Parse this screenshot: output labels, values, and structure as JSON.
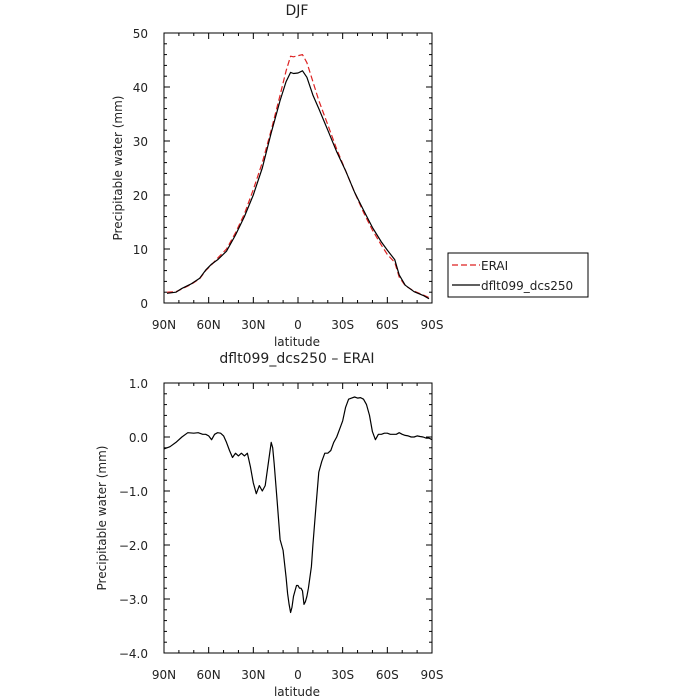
{
  "chart_data": [
    {
      "type": "line",
      "title": "DJF",
      "xlabel": "latitude",
      "ylabel": "Precipitable water  (mm)",
      "xlim": [
        90,
        -90
      ],
      "ylim": [
        0,
        50
      ],
      "x_ticks": [
        90,
        60,
        30,
        0,
        -30,
        -60,
        -90
      ],
      "x_tick_labels": [
        "90N",
        "60N",
        "30N",
        "0",
        "30S",
        "60S",
        "90S"
      ],
      "y_ticks": [
        0,
        10,
        20,
        30,
        40,
        50
      ],
      "y_tick_labels": [
        "0",
        "10",
        "20",
        "30",
        "40",
        "50"
      ],
      "legend_placement": "right, outside plot",
      "series": [
        {
          "name": "ERAI",
          "color": "#dd2222",
          "style": "dashed",
          "x": [
            88,
            82,
            78,
            72,
            66,
            62,
            58,
            54,
            48,
            42,
            36,
            30,
            24,
            18,
            12,
            8,
            5,
            3,
            0,
            -3,
            -6,
            -10,
            -14,
            -20,
            -26,
            -32,
            -38,
            -44,
            -50,
            -56,
            -60,
            -65,
            -68,
            -72,
            -78,
            -84,
            -88
          ],
          "values": [
            2.0,
            2.1,
            2.6,
            3.4,
            4.5,
            6.0,
            7.1,
            8.3,
            10.0,
            13.0,
            16.5,
            21.0,
            26.0,
            32.0,
            38.5,
            43.0,
            45.7,
            45.6,
            45.8,
            46.0,
            44.5,
            41.0,
            37.5,
            33.0,
            28.5,
            24.5,
            20.5,
            16.8,
            13.5,
            10.7,
            9.0,
            7.5,
            4.8,
            3.2,
            2.2,
            1.5,
            1.0
          ]
        },
        {
          "name": "dflt099_dcs250",
          "color": "#000000",
          "style": "solid",
          "x": [
            88,
            82,
            78,
            72,
            66,
            62,
            58,
            54,
            48,
            42,
            36,
            30,
            24,
            18,
            12,
            8,
            5,
            3,
            0,
            -3,
            -6,
            -10,
            -14,
            -20,
            -26,
            -32,
            -38,
            -44,
            -50,
            -56,
            -60,
            -65,
            -68,
            -72,
            -78,
            -84,
            -88
          ],
          "values": [
            1.8,
            2.0,
            2.7,
            3.5,
            4.6,
            6.1,
            7.2,
            8.0,
            9.6,
            12.6,
            16.0,
            20.0,
            25.0,
            31.5,
            37.5,
            41.0,
            42.7,
            42.5,
            42.6,
            43.0,
            41.8,
            38.5,
            36.0,
            32.0,
            28.0,
            24.5,
            20.5,
            17.2,
            14.0,
            11.3,
            9.8,
            8.0,
            5.2,
            3.3,
            2.1,
            1.4,
            0.8
          ]
        }
      ]
    },
    {
      "type": "line",
      "title": "dflt099_dcs250 – ERAI",
      "xlabel": "latitude",
      "ylabel": "Precipitable water  (mm)",
      "xlim": [
        90,
        -90
      ],
      "ylim": [
        -4,
        1
      ],
      "x_ticks": [
        90,
        60,
        30,
        0,
        -30,
        -60,
        -90
      ],
      "x_tick_labels": [
        "90N",
        "60N",
        "30N",
        "0",
        "30S",
        "60S",
        "90S"
      ],
      "y_ticks": [
        1,
        0,
        -1,
        -2,
        -3,
        -4
      ],
      "y_tick_labels": [
        "1.0",
        "0.0",
        "−1.0",
        "−2.0",
        "−3.0",
        "−4.0"
      ],
      "series": [
        {
          "color": "#000000",
          "style": "solid",
          "x": [
            90,
            86,
            82,
            78,
            74,
            70,
            67,
            64,
            62,
            60,
            58,
            56,
            54,
            52,
            50,
            48,
            46,
            44,
            42,
            40,
            38,
            36,
            34,
            32,
            30,
            28,
            26,
            24,
            22,
            20,
            19,
            18,
            17,
            16,
            14,
            12,
            10,
            8,
            7,
            6,
            5,
            4,
            3,
            2,
            1,
            0,
            -1,
            -2,
            -3,
            -4,
            -5,
            -6,
            -7,
            -8,
            -9,
            -10,
            -12,
            -14,
            -16,
            -18,
            -20,
            -22,
            -24,
            -26,
            -28,
            -30,
            -32,
            -34,
            -36,
            -38,
            -40,
            -42,
            -44,
            -46,
            -48,
            -50,
            -52,
            -54,
            -56,
            -58,
            -60,
            -62,
            -64,
            -66,
            -68,
            -70,
            -72,
            -74,
            -76,
            -78,
            -80,
            -82,
            -84,
            -86,
            -88,
            -90
          ],
          "values": [
            -0.22,
            -0.18,
            -0.1,
            0.0,
            0.08,
            0.07,
            0.08,
            0.05,
            0.05,
            0.02,
            -0.05,
            0.05,
            0.08,
            0.07,
            0.02,
            -0.1,
            -0.25,
            -0.38,
            -0.3,
            -0.35,
            -0.3,
            -0.35,
            -0.3,
            -0.55,
            -0.85,
            -1.05,
            -0.9,
            -1.0,
            -0.9,
            -0.5,
            -0.3,
            -0.1,
            -0.2,
            -0.5,
            -1.2,
            -1.9,
            -2.1,
            -2.6,
            -2.9,
            -3.1,
            -3.25,
            -3.15,
            -2.95,
            -2.85,
            -2.75,
            -2.75,
            -2.8,
            -2.8,
            -2.85,
            -3.1,
            -3.05,
            -2.95,
            -2.8,
            -2.6,
            -2.4,
            -2.0,
            -1.3,
            -0.65,
            -0.45,
            -0.3,
            -0.3,
            -0.25,
            -0.1,
            0.0,
            0.15,
            0.3,
            0.55,
            0.7,
            0.72,
            0.74,
            0.72,
            0.73,
            0.7,
            0.6,
            0.4,
            0.1,
            -0.05,
            0.05,
            0.05,
            0.07,
            0.07,
            0.05,
            0.05,
            0.05,
            0.08,
            0.05,
            0.03,
            0.02,
            0.0,
            0.0,
            0.02,
            0.01,
            0.0,
            -0.02,
            -0.02,
            -0.05
          ]
        }
      ]
    }
  ]
}
